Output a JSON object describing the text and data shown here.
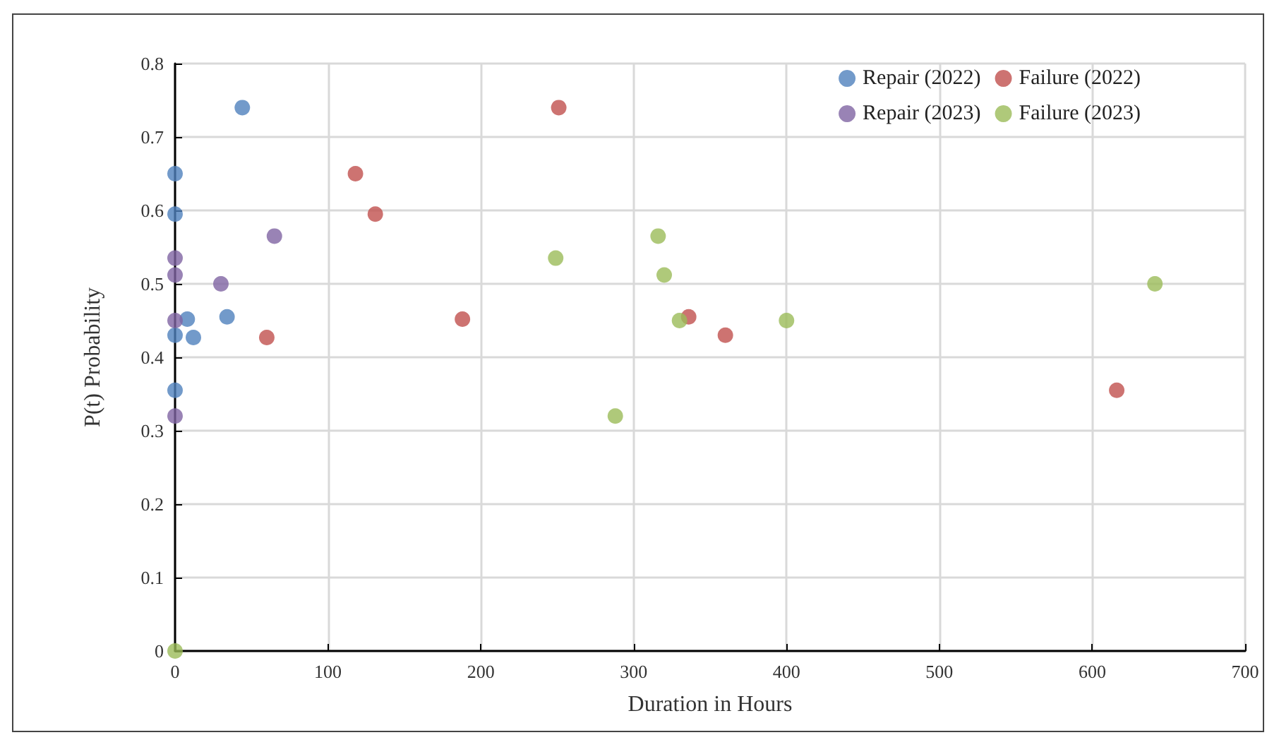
{
  "chart_data": {
    "type": "scatter",
    "xlabel": "Duration in Hours",
    "ylabel": "P(t) Probability",
    "xlim": [
      0,
      700
    ],
    "xticks": [
      0,
      100,
      200,
      300,
      400,
      500,
      600,
      700
    ],
    "ylim": [
      0,
      0.8
    ],
    "yticks": [
      0,
      0.1,
      0.2,
      0.3,
      0.4,
      0.5,
      0.6,
      0.7,
      0.8
    ],
    "grid": true,
    "legend": "top right",
    "marker": "circle",
    "series": [
      {
        "name": "Repair (2022)",
        "color": "#4f81bd",
        "x": [
          0,
          0,
          0,
          0,
          8,
          12,
          34,
          44
        ],
        "values": [
          0.65,
          0.595,
          0.43,
          0.355,
          0.452,
          0.427,
          0.455,
          0.74
        ]
      },
      {
        "name": "Failure (2022)",
        "color": "#c0504d",
        "x": [
          60,
          118,
          131,
          188,
          251,
          336,
          360,
          616
        ],
        "values": [
          0.427,
          0.65,
          0.595,
          0.452,
          0.74,
          0.455,
          0.43,
          0.355
        ]
      },
      {
        "name": "Repair (2023)",
        "color": "#8064a2",
        "x": [
          0,
          0,
          0,
          0,
          30,
          65
        ],
        "values": [
          0.535,
          0.512,
          0.45,
          0.32,
          0.5,
          0.565
        ]
      },
      {
        "name": "Failure (2023)",
        "color": "#9bbb59",
        "x": [
          0,
          249,
          288,
          316,
          320,
          330,
          400,
          641
        ],
        "values": [
          0,
          0.535,
          0.32,
          0.565,
          0.512,
          0.45,
          0.45,
          0.5
        ]
      }
    ]
  }
}
